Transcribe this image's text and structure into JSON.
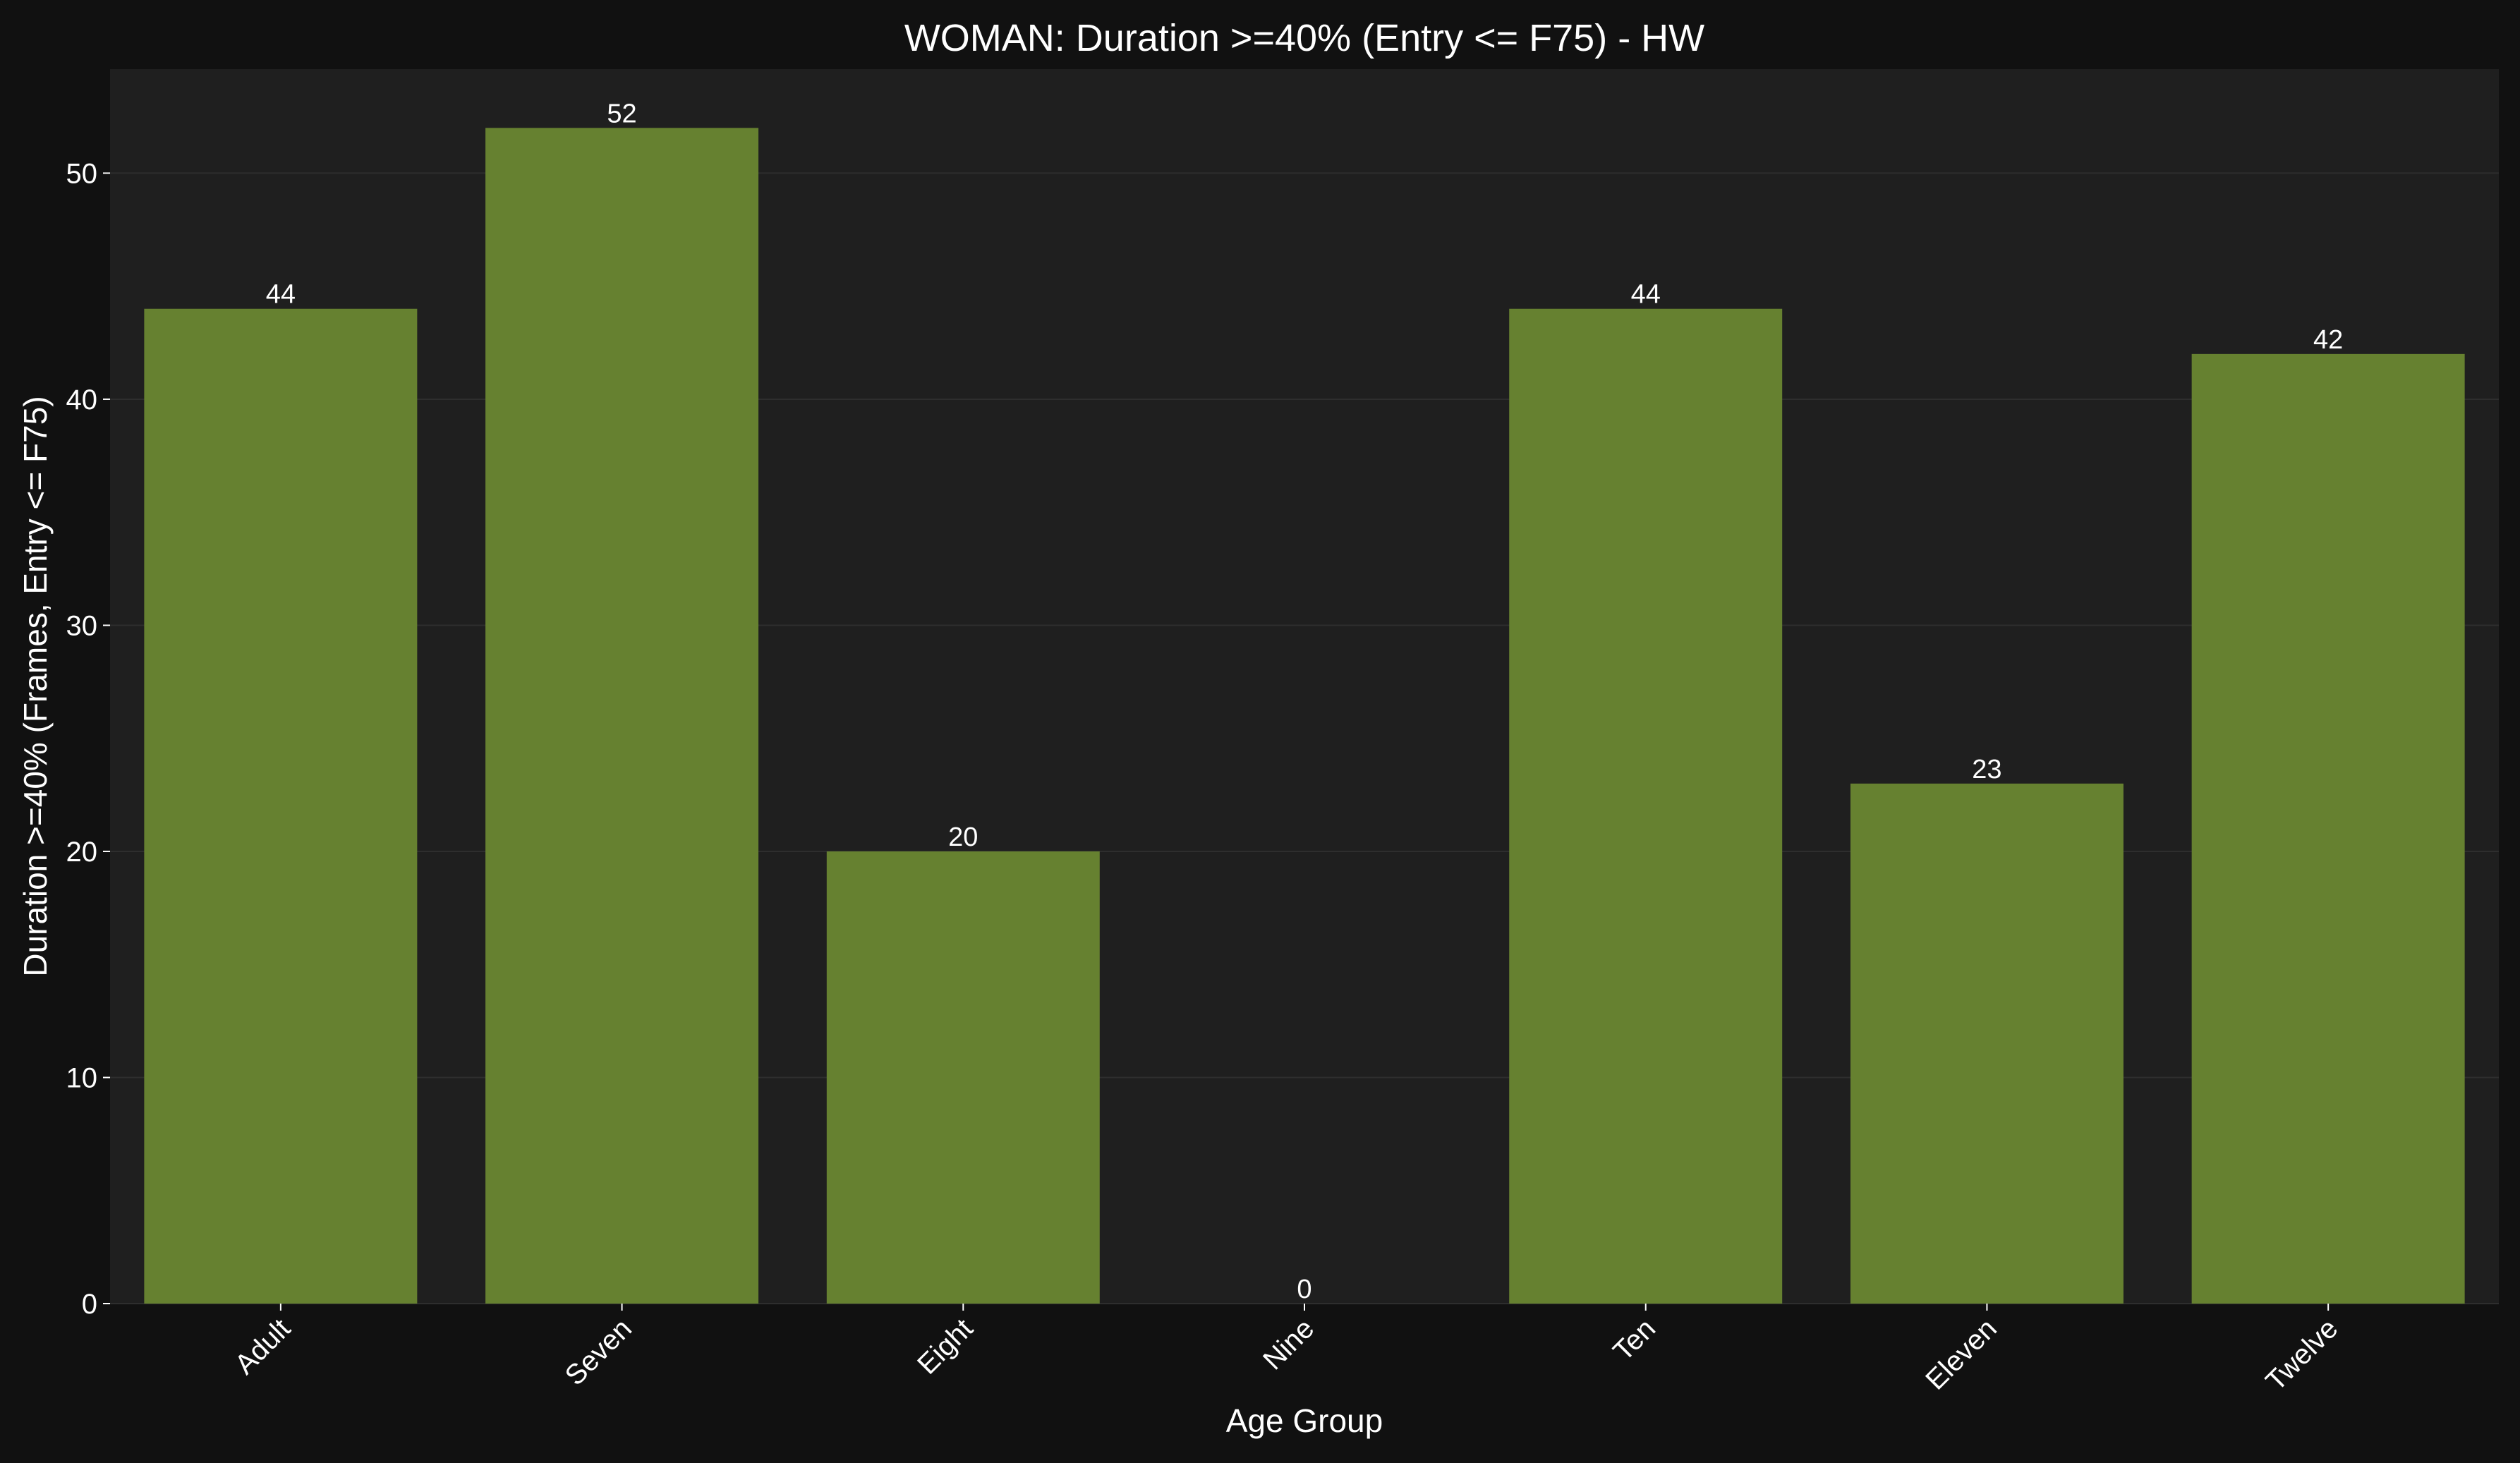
{
  "chart_data": {
    "type": "bar",
    "title": "WOMAN: Duration >=40% (Entry <= F75) - HW",
    "xlabel": "Age Group",
    "ylabel": "Duration >=40% (Frames, Entry <= F75)",
    "categories": [
      "Adult",
      "Seven",
      "Eight",
      "Nine",
      "Ten",
      "Eleven",
      "Twelve"
    ],
    "values": [
      44,
      52,
      20,
      0,
      44,
      23,
      42
    ],
    "data_labels": [
      "44",
      "52",
      "20",
      "0",
      "44",
      "23",
      "42"
    ],
    "ylim": [
      0,
      54.6
    ],
    "yticks": [
      0,
      10,
      20,
      30,
      40,
      50
    ],
    "grid": true,
    "legend": "none",
    "colors": {
      "bar": "#668130",
      "plot_background": "#1f1f1f",
      "figure_background": "#111111",
      "text": "#ffffff"
    }
  }
}
